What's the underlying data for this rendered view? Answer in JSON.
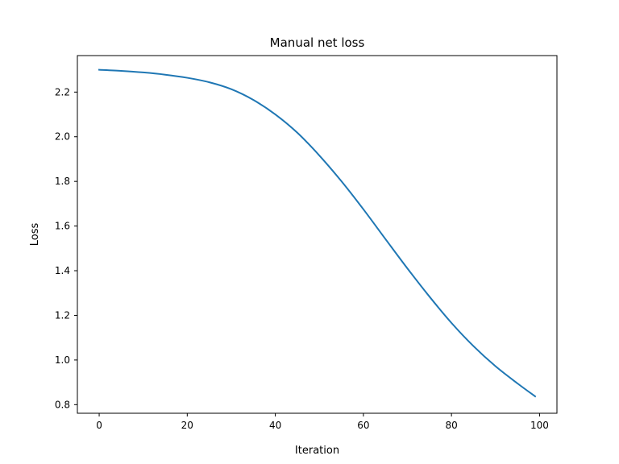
{
  "chart_data": {
    "type": "line",
    "title": "Manual net loss",
    "xlabel": "Iteration",
    "ylabel": "Loss",
    "xlim": [
      -4.95,
      103.95
    ],
    "ylim": [
      0.7615,
      2.3635
    ],
    "xticks": [
      0,
      20,
      40,
      60,
      80,
      100
    ],
    "yticks": [
      0.8,
      1.0,
      1.2,
      1.4,
      1.6,
      1.8,
      2.0,
      2.2
    ],
    "ytick_labels": [
      "0.8",
      "1.0",
      "1.2",
      "1.4",
      "1.6",
      "1.8",
      "2.0",
      "2.2"
    ],
    "xtick_labels": [
      "0",
      "20",
      "40",
      "60",
      "80",
      "100"
    ],
    "grid": false,
    "series": [
      {
        "color": "#1f77b4",
        "x": [
          0,
          5,
          10,
          15,
          20,
          25,
          30,
          35,
          40,
          45,
          50,
          55,
          60,
          65,
          70,
          75,
          80,
          85,
          90,
          95,
          99
        ],
        "y": [
          2.3,
          2.295,
          2.288,
          2.278,
          2.264,
          2.244,
          2.213,
          2.165,
          2.1,
          2.018,
          1.916,
          1.801,
          1.675,
          1.542,
          1.41,
          1.284,
          1.166,
          1.062,
          0.972,
          0.895,
          0.837
        ]
      }
    ]
  }
}
